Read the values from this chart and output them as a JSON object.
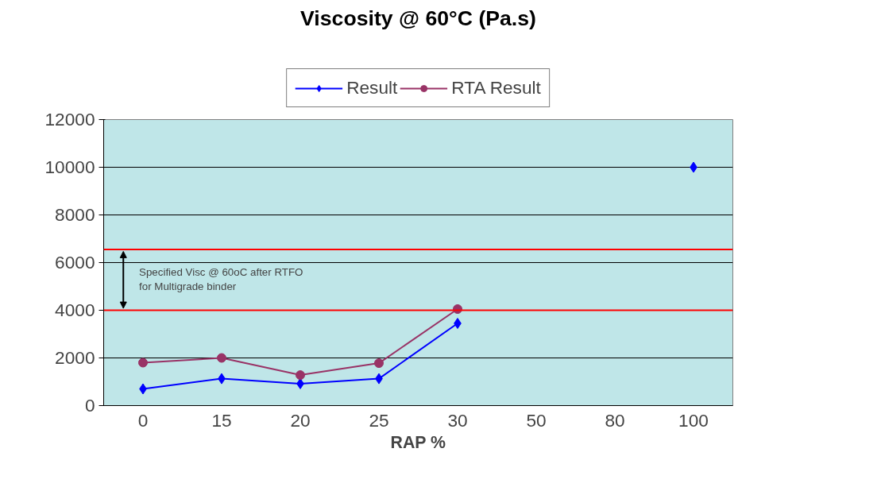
{
  "chart_data": {
    "type": "line",
    "title": "Viscosity @ 60°C (Pa.s)",
    "xlabel": "RAP %",
    "categories": [
      "0",
      "15",
      "20",
      "25",
      "30",
      "50",
      "80",
      "100"
    ],
    "series": [
      {
        "name": "Result",
        "color": "#0000ff",
        "marker": "diamond",
        "values": [
          700,
          1130,
          920,
          1130,
          3450,
          null,
          null,
          10000
        ]
      },
      {
        "name": "RTA Result",
        "color": "#993366",
        "marker": "circle",
        "values": [
          1800,
          2000,
          1280,
          1780,
          4050,
          null,
          null,
          null
        ]
      }
    ],
    "ylim": [
      0,
      12000
    ],
    "yticks": [
      0,
      2000,
      4000,
      6000,
      8000,
      10000,
      12000
    ],
    "grid": "y",
    "legend": "top",
    "ref_lines": [
      {
        "axis": "y",
        "value": 6550,
        "label": null,
        "color": "#ff0000"
      },
      {
        "axis": "y",
        "value": 4000,
        "label": null,
        "color": "#ff0000"
      }
    ],
    "annotations": [
      "Specified Visc @ 60oC after RTFO\nfor Multigrade binder"
    ]
  }
}
